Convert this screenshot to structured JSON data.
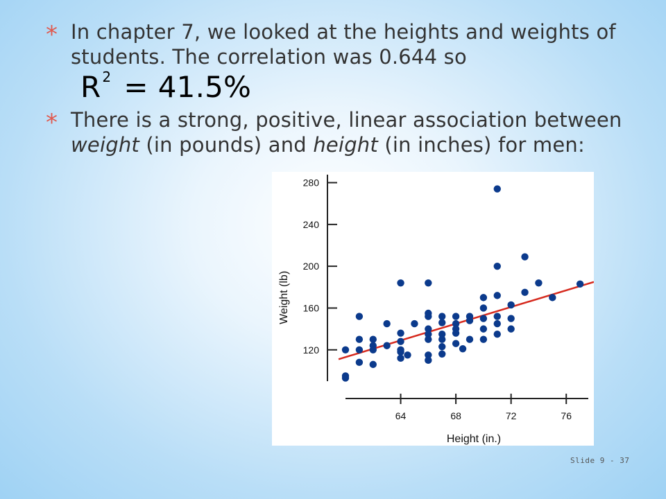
{
  "bullets": {
    "b1_text": "In chapter 7, we looked at the heights and weights of students.  The correlation was 0.644 so",
    "b1_formula": {
      "lhs": "R",
      "exp": "2",
      "eq": "=",
      "rhs": "41.5%"
    },
    "b2_part1": "There is a strong, positive, linear association between ",
    "b2_weight": "weight",
    "b2_part2": " (in pounds) and ",
    "b2_height": "height",
    "b2_part3": " (in inches) for men:",
    "star": "*"
  },
  "slide_number": "Slide 9 - 37",
  "colors": {
    "star": "#e05a4f",
    "points": "#0b3a8c",
    "line": "#d62a1e"
  },
  "chart_data": {
    "type": "scatter",
    "xlabel": "Height (in.)",
    "ylabel": "Weight (lb)",
    "xlim": [
      60,
      78
    ],
    "ylim": [
      90,
      285
    ],
    "xticks": [
      64,
      68,
      72,
      76
    ],
    "yticks": [
      120,
      160,
      200,
      240,
      280
    ],
    "grid": false,
    "points": [
      [
        60,
        120
      ],
      [
        60,
        93
      ],
      [
        60,
        95
      ],
      [
        61,
        152
      ],
      [
        61,
        130
      ],
      [
        61,
        120
      ],
      [
        61,
        108
      ],
      [
        62,
        130
      ],
      [
        62,
        124
      ],
      [
        62,
        120
      ],
      [
        62,
        106
      ],
      [
        63,
        145
      ],
      [
        63,
        124
      ],
      [
        64,
        184
      ],
      [
        64,
        136
      ],
      [
        64,
        128
      ],
      [
        64,
        118
      ],
      [
        64,
        112
      ],
      [
        64,
        120
      ],
      [
        64.5,
        115
      ],
      [
        65,
        145
      ],
      [
        66,
        184
      ],
      [
        66,
        155
      ],
      [
        66,
        152
      ],
      [
        66,
        140
      ],
      [
        66,
        135
      ],
      [
        66,
        130
      ],
      [
        66,
        115
      ],
      [
        66,
        110
      ],
      [
        67,
        152
      ],
      [
        67,
        146
      ],
      [
        67,
        135
      ],
      [
        67,
        130
      ],
      [
        67,
        123
      ],
      [
        67,
        116
      ],
      [
        68,
        152
      ],
      [
        68,
        145
      ],
      [
        68,
        140
      ],
      [
        68,
        136
      ],
      [
        68,
        126
      ],
      [
        68.5,
        121
      ],
      [
        69,
        152
      ],
      [
        69,
        148
      ],
      [
        69,
        130
      ],
      [
        70,
        170
      ],
      [
        70,
        160
      ],
      [
        70,
        150
      ],
      [
        70,
        140
      ],
      [
        70,
        130
      ],
      [
        71,
        274
      ],
      [
        71,
        200
      ],
      [
        71,
        172
      ],
      [
        71,
        152
      ],
      [
        71,
        145
      ],
      [
        71,
        135
      ],
      [
        72,
        163
      ],
      [
        72,
        150
      ],
      [
        72,
        140
      ],
      [
        73,
        209
      ],
      [
        73,
        175
      ],
      [
        74,
        184
      ],
      [
        75,
        170
      ],
      [
        77,
        183
      ]
    ],
    "regression_line": {
      "x": [
        59.5,
        78
      ],
      "y": [
        111,
        185
      ]
    }
  }
}
